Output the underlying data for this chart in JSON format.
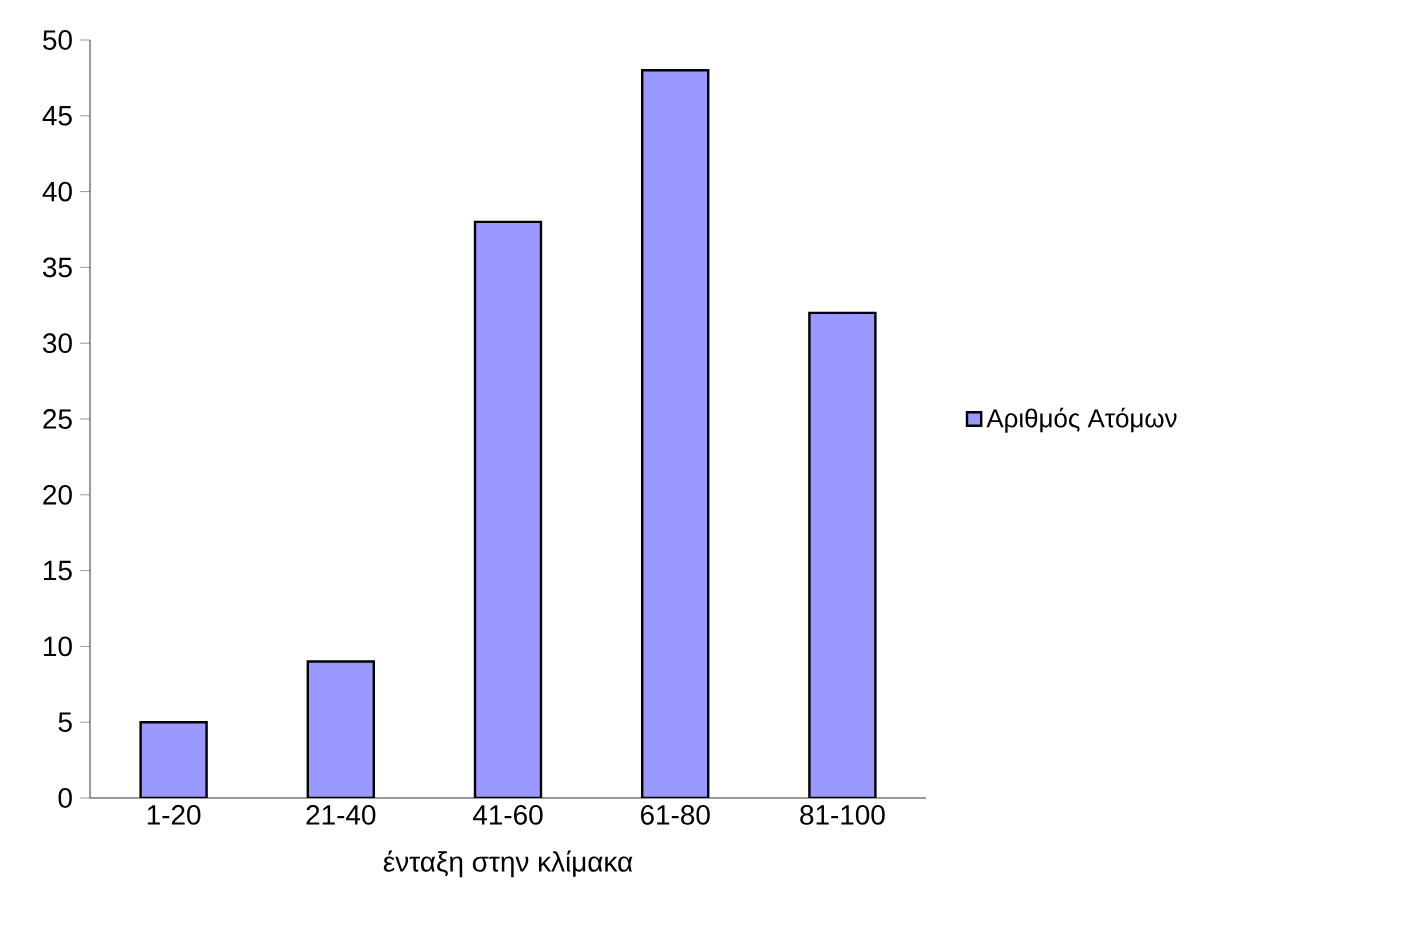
{
  "chart_data": {
    "type": "bar",
    "categories": [
      "1-20",
      "21-40",
      "41-60",
      "61-80",
      "81-100"
    ],
    "series": [
      {
        "name": "Αριθμός Ατόμων",
        "color": "#9999ff",
        "values": [
          5,
          9,
          38,
          48,
          32
        ]
      }
    ],
    "xlabel": "ένταξη στην κλίμακα",
    "ylim": [
      0,
      50
    ],
    "yticks": [
      0,
      5,
      10,
      15,
      20,
      25,
      30,
      35,
      40,
      45,
      50
    ],
    "legend": "right"
  }
}
